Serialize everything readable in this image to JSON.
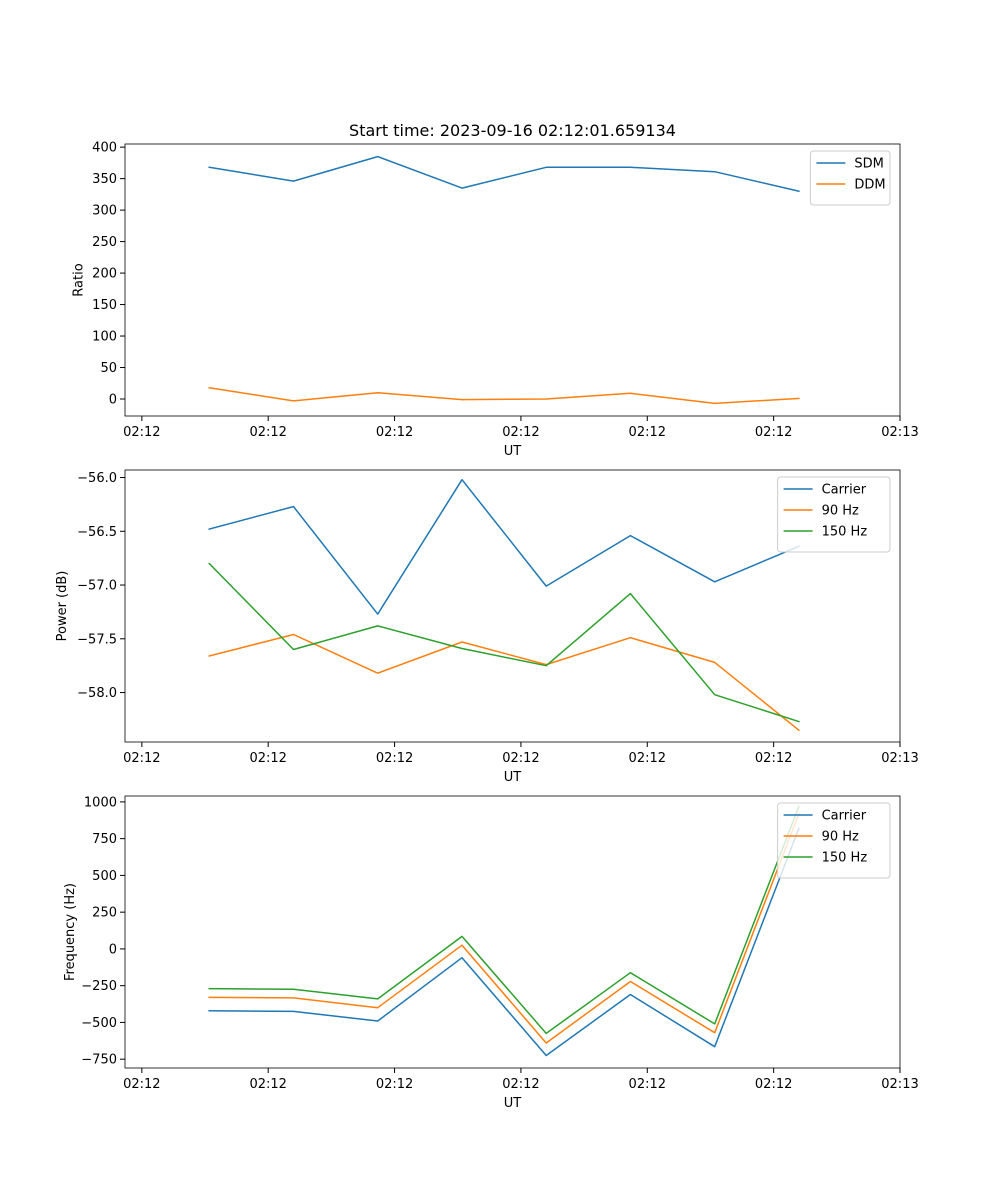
{
  "chart_data": [
    {
      "type": "line",
      "title": "Start time: 2023-09-16 02:12:01.659134",
      "xlabel": "UT",
      "ylabel": "Ratio",
      "x": [
        1,
        2,
        3,
        4,
        5,
        6,
        7,
        8
      ],
      "xlim": [
        0,
        9.2
      ],
      "xticks": [
        0.2,
        1.7,
        3.2,
        4.7,
        6.2,
        7.7,
        9.2
      ],
      "xtick_labels": [
        "02:12",
        "02:12",
        "02:12",
        "02:12",
        "02:12",
        "02:12",
        "02:13"
      ],
      "ylim": [
        -27,
        405
      ],
      "yticks": [
        0,
        50,
        100,
        150,
        200,
        250,
        300,
        350,
        400
      ],
      "ytick_labels": [
        "0",
        "50",
        "100",
        "150",
        "200",
        "250",
        "300",
        "350",
        "400"
      ],
      "legend": "top-right",
      "series": [
        {
          "name": "SDM",
          "color": "#1f77b4",
          "values": [
            368,
            346,
            385,
            335,
            368,
            368,
            361,
            330
          ]
        },
        {
          "name": "DDM",
          "color": "#ff7f0e",
          "values": [
            18,
            -3,
            10,
            -1,
            0,
            9,
            -7,
            1
          ]
        }
      ]
    },
    {
      "type": "line",
      "title": "",
      "xlabel": "UT",
      "ylabel": "Power (dB)",
      "x": [
        1,
        2,
        3,
        4,
        5,
        6,
        7,
        8
      ],
      "xlim": [
        0,
        9.2
      ],
      "xticks": [
        0.2,
        1.7,
        3.2,
        4.7,
        6.2,
        7.7,
        9.2
      ],
      "xtick_labels": [
        "02:12",
        "02:12",
        "02:12",
        "02:12",
        "02:12",
        "02:12",
        "02:13"
      ],
      "ylim": [
        -58.46,
        -55.93
      ],
      "yticks": [
        -56.0,
        -56.5,
        -57.0,
        -57.5,
        -58.0
      ],
      "ytick_labels": [
        "−56.0",
        "−56.5",
        "−57.0",
        "−57.5",
        "−58.0"
      ],
      "legend": "top-right",
      "series": [
        {
          "name": "Carrier",
          "color": "#1f77b4",
          "values": [
            -56.48,
            -56.27,
            -57.27,
            -56.02,
            -57.01,
            -56.54,
            -56.97,
            -56.64
          ]
        },
        {
          "name": "90 Hz",
          "color": "#ff7f0e",
          "values": [
            -57.66,
            -57.46,
            -57.82,
            -57.53,
            -57.74,
            -57.49,
            -57.72,
            -58.35
          ]
        },
        {
          "name": "150 Hz",
          "color": "#2ca02c",
          "values": [
            -56.8,
            -57.6,
            -57.38,
            -57.59,
            -57.75,
            -57.08,
            -58.02,
            -58.27
          ]
        }
      ]
    },
    {
      "type": "line",
      "title": "",
      "xlabel": "UT",
      "ylabel": "Frequency (Hz)",
      "x": [
        1,
        2,
        3,
        4,
        5,
        6,
        7,
        8
      ],
      "xlim": [
        0,
        9.2
      ],
      "xticks": [
        0.2,
        1.7,
        3.2,
        4.7,
        6.2,
        7.7,
        9.2
      ],
      "xtick_labels": [
        "02:12",
        "02:12",
        "02:12",
        "02:12",
        "02:12",
        "02:12",
        "02:13"
      ],
      "ylim": [
        -810,
        1040
      ],
      "yticks": [
        1000,
        750,
        500,
        250,
        0,
        -250,
        -500,
        -750
      ],
      "ytick_labels": [
        "1000",
        "750",
        "500",
        "250",
        "0",
        "−250",
        "−500",
        "−750"
      ],
      "legend": "top-right",
      "series": [
        {
          "name": "Carrier",
          "color": "#1f77b4",
          "values": [
            -420,
            -425,
            -490,
            -60,
            -725,
            -310,
            -665,
            820
          ]
        },
        {
          "name": "90 Hz",
          "color": "#ff7f0e",
          "values": [
            -330,
            -333,
            -400,
            25,
            -640,
            -222,
            -570,
            920
          ]
        },
        {
          "name": "150 Hz",
          "color": "#2ca02c",
          "values": [
            -270,
            -275,
            -340,
            85,
            -575,
            -162,
            -510,
            970
          ]
        }
      ]
    }
  ]
}
